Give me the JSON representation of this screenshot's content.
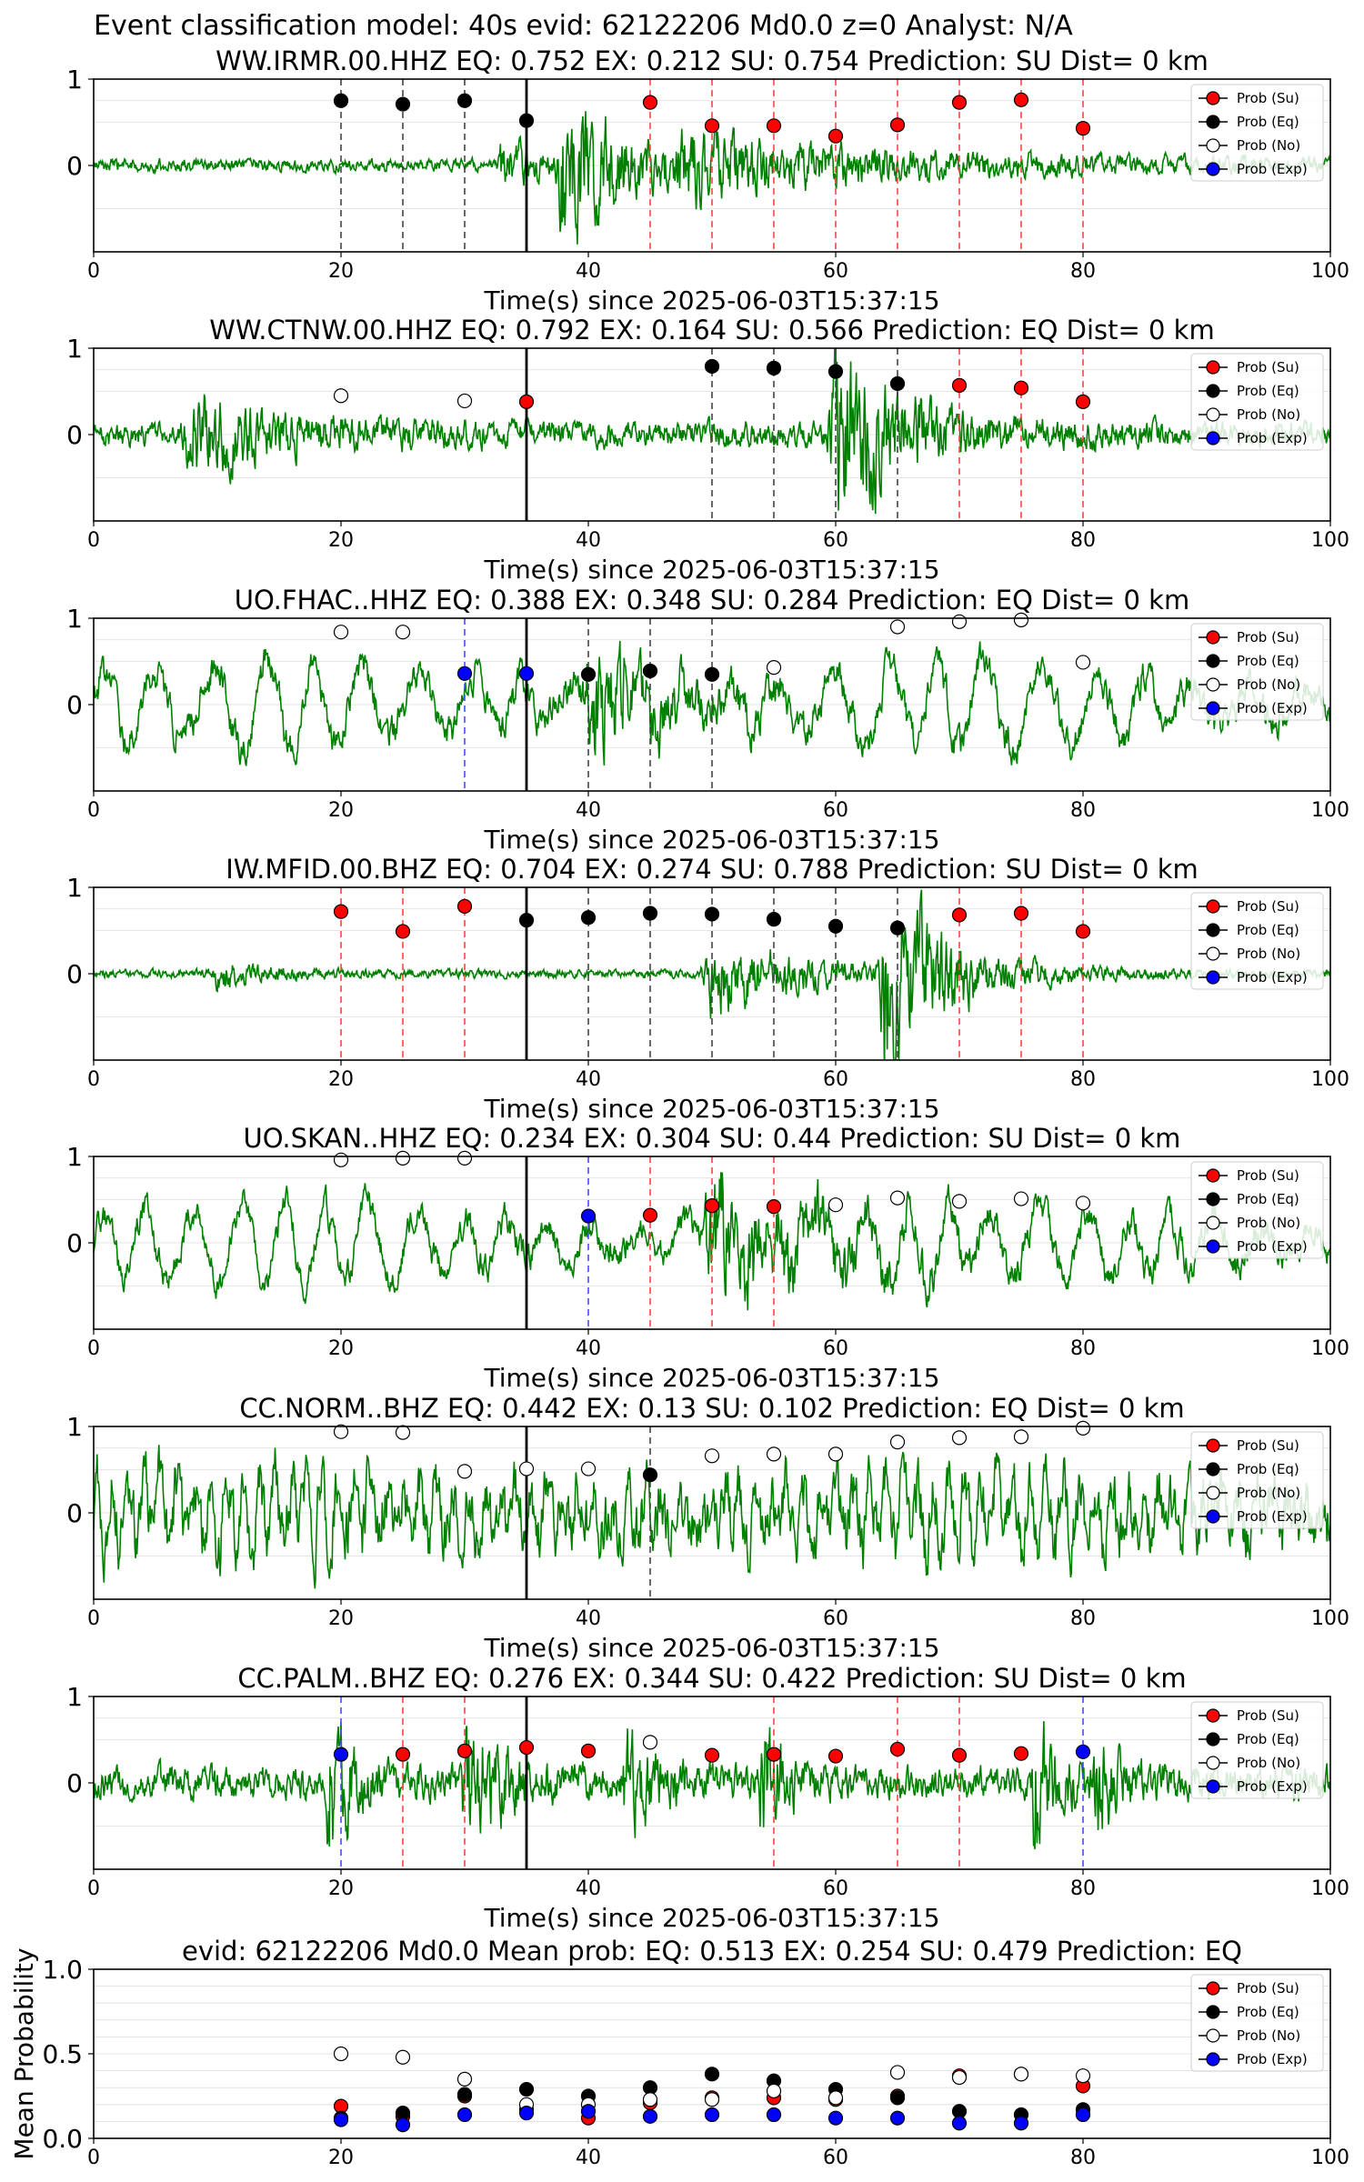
{
  "figure": {
    "suptitle": "Event classification model: 40s evid: 62122206 Md0.0 z=0 Analyst: N/A",
    "colors": {
      "su": "#ff0000",
      "eq": "#000000",
      "no": "#ffffff",
      "exp": "#0000ff",
      "waveform": "#008000",
      "su_line": "#ff4444",
      "eq_line": "#444444",
      "exp_line": "#4a4aff",
      "origin_line": "#000000"
    },
    "legend": [
      "Prob (Su)",
      "Prob (Eq)",
      "Prob (No)",
      "Prob (Exp)"
    ]
  },
  "chart_data": [
    {
      "type": "scatter",
      "title": "WW.IRMR.00.HHZ   EQ: 0.752  EX: 0.212  SU: 0.754   Prediction: SU    Dist= 0 km",
      "xlabel": "Time(s) since 2025-06-03T15:37:15",
      "ylabel": "",
      "xlim": [
        0,
        100
      ],
      "ylim": [
        -1,
        1
      ],
      "xticks": [
        "0",
        "20",
        "40",
        "60",
        "80",
        "100"
      ],
      "yticks": [
        "0",
        "1"
      ],
      "origin_time": 35,
      "waveform": {
        "noise": 0.06,
        "bursts": [
          [
            33,
            4,
            0.25
          ],
          [
            38,
            8,
            0.75
          ],
          [
            48,
            30,
            0.25
          ]
        ],
        "osc_amp": 0,
        "osc_period": 0
      },
      "series": [
        {
          "name": "Prob (Su)",
          "x": [
            45,
            50,
            55,
            60,
            65,
            70,
            75,
            80
          ],
          "y": [
            0.73,
            0.46,
            0.46,
            0.34,
            0.47,
            0.73,
            0.76,
            0.43
          ]
        },
        {
          "name": "Prob (Eq)",
          "x": [
            20,
            25,
            30,
            35
          ],
          "y": [
            0.75,
            0.71,
            0.75,
            0.52
          ]
        },
        {
          "name": "Prob (No)",
          "x": [],
          "y": []
        },
        {
          "name": "Prob (Exp)",
          "x": [],
          "y": []
        }
      ],
      "vlines": [
        {
          "x": 20,
          "cls": "eq"
        },
        {
          "x": 25,
          "cls": "eq"
        },
        {
          "x": 30,
          "cls": "eq"
        },
        {
          "x": 45,
          "cls": "su"
        },
        {
          "x": 50,
          "cls": "su"
        },
        {
          "x": 55,
          "cls": "su"
        },
        {
          "x": 60,
          "cls": "su"
        },
        {
          "x": 65,
          "cls": "su"
        },
        {
          "x": 70,
          "cls": "su"
        },
        {
          "x": 75,
          "cls": "su"
        },
        {
          "x": 80,
          "cls": "su"
        }
      ],
      "legend_position": "upper right"
    },
    {
      "type": "scatter",
      "title": "WW.CTNW.00.HHZ   EQ: 0.792  EX: 0.164  SU: 0.566   Prediction: EQ    Dist= 0 km",
      "xlabel": "Time(s) since 2025-06-03T15:37:15",
      "ylabel": "",
      "xlim": [
        0,
        100
      ],
      "ylim": [
        -1,
        1
      ],
      "xticks": [
        "0",
        "20",
        "40",
        "60",
        "80",
        "100"
      ],
      "yticks": [
        "0",
        "1"
      ],
      "origin_time": 35,
      "waveform": {
        "noise": 0.12,
        "bursts": [
          [
            8,
            12,
            0.3
          ],
          [
            60,
            8,
            0.85
          ]
        ],
        "osc_amp": 0,
        "osc_period": 0
      },
      "series": [
        {
          "name": "Prob (Su)",
          "x": [
            35,
            70,
            75,
            80
          ],
          "y": [
            0.38,
            0.57,
            0.54,
            0.38
          ]
        },
        {
          "name": "Prob (Eq)",
          "x": [
            50,
            55,
            60,
            65
          ],
          "y": [
            0.79,
            0.77,
            0.73,
            0.59
          ]
        },
        {
          "name": "Prob (No)",
          "x": [
            20,
            30
          ],
          "y": [
            0.45,
            0.39
          ]
        },
        {
          "name": "Prob (Exp)",
          "x": [],
          "y": []
        }
      ],
      "vlines": [
        {
          "x": 50,
          "cls": "eq"
        },
        {
          "x": 55,
          "cls": "eq"
        },
        {
          "x": 60,
          "cls": "eq"
        },
        {
          "x": 65,
          "cls": "eq"
        },
        {
          "x": 70,
          "cls": "su"
        },
        {
          "x": 75,
          "cls": "su"
        },
        {
          "x": 80,
          "cls": "su"
        }
      ],
      "legend_position": "upper right"
    },
    {
      "type": "scatter",
      "title": "UO.FHAC..HHZ   EQ: 0.388  EX: 0.348  SU: 0.284   Prediction: EQ    Dist= 0 km",
      "xlabel": "Time(s) since 2025-06-03T15:37:15",
      "ylabel": "",
      "xlim": [
        0,
        100
      ],
      "ylim": [
        -1,
        1
      ],
      "xticks": [
        "0",
        "20",
        "40",
        "60",
        "80",
        "100"
      ],
      "yticks": [
        "0",
        "1"
      ],
      "origin_time": 35,
      "waveform": {
        "noise": 0.1,
        "bursts": [
          [
            40,
            8,
            0.45
          ]
        ],
        "osc_amp": 0.45,
        "osc_period": 4.2
      },
      "series": [
        {
          "name": "Prob (Su)",
          "x": [],
          "y": []
        },
        {
          "name": "Prob (Eq)",
          "x": [
            40,
            45,
            50
          ],
          "y": [
            0.35,
            0.39,
            0.35
          ]
        },
        {
          "name": "Prob (No)",
          "x": [
            20,
            25,
            55,
            65,
            70,
            75,
            80
          ],
          "y": [
            0.84,
            0.84,
            0.43,
            0.9,
            0.96,
            0.98,
            0.49
          ]
        },
        {
          "name": "Prob (Exp)",
          "x": [
            30,
            35
          ],
          "y": [
            0.36,
            0.36
          ]
        }
      ],
      "vlines": [
        {
          "x": 30,
          "cls": "exp"
        },
        {
          "x": 40,
          "cls": "eq"
        },
        {
          "x": 45,
          "cls": "eq"
        },
        {
          "x": 50,
          "cls": "eq"
        }
      ],
      "legend_position": "upper right"
    },
    {
      "type": "scatter",
      "title": "IW.MFID.00.BHZ   EQ: 0.704  EX: 0.274  SU: 0.788   Prediction: SU    Dist= 0 km",
      "xlabel": "Time(s) since 2025-06-03T15:37:15",
      "ylabel": "",
      "xlim": [
        0,
        100
      ],
      "ylim": [
        -1,
        1
      ],
      "xticks": [
        "0",
        "20",
        "40",
        "60",
        "80",
        "100"
      ],
      "yticks": [
        "0",
        "1"
      ],
      "origin_time": 35,
      "waveform": {
        "noise": 0.04,
        "bursts": [
          [
            10,
            5,
            0.15
          ],
          [
            50,
            12,
            0.35
          ],
          [
            64,
            8,
            0.95
          ]
        ],
        "osc_amp": 0,
        "osc_period": 0
      },
      "series": [
        {
          "name": "Prob (Su)",
          "x": [
            20,
            25,
            30,
            70,
            75,
            80
          ],
          "y": [
            0.72,
            0.49,
            0.78,
            0.68,
            0.7,
            0.49
          ]
        },
        {
          "name": "Prob (Eq)",
          "x": [
            35,
            40,
            45,
            50,
            55,
            60,
            65
          ],
          "y": [
            0.62,
            0.65,
            0.7,
            0.69,
            0.63,
            0.55,
            0.53
          ]
        },
        {
          "name": "Prob (No)",
          "x": [],
          "y": []
        },
        {
          "name": "Prob (Exp)",
          "x": [],
          "y": []
        }
      ],
      "vlines": [
        {
          "x": 20,
          "cls": "su"
        },
        {
          "x": 25,
          "cls": "su"
        },
        {
          "x": 30,
          "cls": "su"
        },
        {
          "x": 40,
          "cls": "eq"
        },
        {
          "x": 45,
          "cls": "eq"
        },
        {
          "x": 50,
          "cls": "eq"
        },
        {
          "x": 55,
          "cls": "eq"
        },
        {
          "x": 60,
          "cls": "eq"
        },
        {
          "x": 65,
          "cls": "eq"
        },
        {
          "x": 70,
          "cls": "su"
        },
        {
          "x": 75,
          "cls": "su"
        },
        {
          "x": 80,
          "cls": "su"
        }
      ],
      "legend_position": "upper right"
    },
    {
      "type": "scatter",
      "title": "UO.SKAN..HHZ   EQ: 0.234  EX: 0.304  SU: 0.44   Prediction: SU    Dist= 0 km",
      "xlabel": "Time(s) since 2025-06-03T15:37:15",
      "ylabel": "",
      "xlim": [
        0,
        100
      ],
      "ylim": [
        -1,
        1
      ],
      "xticks": [
        "0",
        "20",
        "40",
        "60",
        "80",
        "100"
      ],
      "yticks": [
        "0",
        "1"
      ],
      "origin_time": 35,
      "waveform": {
        "noise": 0.08,
        "bursts": [
          [
            50,
            12,
            0.55
          ]
        ],
        "osc_amp": 0.4,
        "osc_period": 3.6
      },
      "series": [
        {
          "name": "Prob (Su)",
          "x": [
            45,
            50,
            55
          ],
          "y": [
            0.32,
            0.43,
            0.42
          ]
        },
        {
          "name": "Prob (Eq)",
          "x": [],
          "y": []
        },
        {
          "name": "Prob (No)",
          "x": [
            20,
            25,
            30,
            60,
            65,
            70,
            75,
            80
          ],
          "y": [
            0.96,
            0.98,
            0.98,
            0.44,
            0.52,
            0.48,
            0.51,
            0.46
          ]
        },
        {
          "name": "Prob (Exp)",
          "x": [
            40
          ],
          "y": [
            0.31
          ]
        }
      ],
      "vlines": [
        {
          "x": 40,
          "cls": "exp"
        },
        {
          "x": 45,
          "cls": "su"
        },
        {
          "x": 50,
          "cls": "su"
        },
        {
          "x": 55,
          "cls": "su"
        }
      ],
      "legend_position": "upper right"
    },
    {
      "type": "scatter",
      "title": "CC.NORM..BHZ   EQ: 0.442  EX: 0.13  SU: 0.102   Prediction: EQ    Dist= 0 km",
      "xlabel": "Time(s) since 2025-06-03T15:37:15",
      "ylabel": "",
      "xlim": [
        0,
        100
      ],
      "ylim": [
        -1,
        1
      ],
      "xticks": [
        "0",
        "20",
        "40",
        "60",
        "80",
        "100"
      ],
      "yticks": [
        "0",
        "1"
      ],
      "origin_time": 35,
      "waveform": {
        "noise": 0.25,
        "bursts": [],
        "osc_amp": 0.35,
        "osc_period": 1.3
      },
      "series": [
        {
          "name": "Prob (Su)",
          "x": [],
          "y": []
        },
        {
          "name": "Prob (Eq)",
          "x": [
            45
          ],
          "y": [
            0.44
          ]
        },
        {
          "name": "Prob (No)",
          "x": [
            20,
            25,
            30,
            35,
            40,
            50,
            55,
            60,
            65,
            70,
            75,
            80
          ],
          "y": [
            0.94,
            0.93,
            0.48,
            0.51,
            0.51,
            0.66,
            0.68,
            0.68,
            0.82,
            0.87,
            0.88,
            0.98
          ]
        },
        {
          "name": "Prob (Exp)",
          "x": [],
          "y": []
        }
      ],
      "vlines": [
        {
          "x": 45,
          "cls": "eq"
        }
      ],
      "legend_position": "upper right"
    },
    {
      "type": "scatter",
      "title": "CC.PALM..BHZ   EQ: 0.276  EX: 0.344  SU: 0.422   Prediction: SU    Dist= 0 km",
      "xlabel": "Time(s) since 2025-06-03T15:37:15",
      "ylabel": "",
      "xlim": [
        0,
        100
      ],
      "ylim": [
        -1,
        1
      ],
      "xticks": [
        "0",
        "20",
        "40",
        "60",
        "80",
        "100"
      ],
      "yticks": [
        "0",
        "1"
      ],
      "origin_time": 35,
      "waveform": {
        "noise": 0.15,
        "bursts": [
          [
            19,
            3,
            0.7
          ],
          [
            30,
            4,
            0.75
          ],
          [
            43,
            4,
            0.45
          ],
          [
            54,
            3,
            0.55
          ],
          [
            76,
            3,
            0.6
          ],
          [
            81,
            3,
            0.45
          ]
        ],
        "osc_amp": 0,
        "osc_period": 0
      },
      "series": [
        {
          "name": "Prob (Su)",
          "x": [
            25,
            30,
            35,
            40,
            50,
            55,
            60,
            65,
            70,
            75
          ],
          "y": [
            0.33,
            0.37,
            0.41,
            0.37,
            0.32,
            0.33,
            0.31,
            0.39,
            0.32,
            0.34
          ]
        },
        {
          "name": "Prob (Eq)",
          "x": [],
          "y": []
        },
        {
          "name": "Prob (No)",
          "x": [
            45
          ],
          "y": [
            0.47
          ]
        },
        {
          "name": "Prob (Exp)",
          "x": [
            20,
            80
          ],
          "y": [
            0.33,
            0.36
          ]
        }
      ],
      "vlines": [
        {
          "x": 20,
          "cls": "exp"
        },
        {
          "x": 25,
          "cls": "su"
        },
        {
          "x": 30,
          "cls": "su"
        },
        {
          "x": 55,
          "cls": "su"
        },
        {
          "x": 65,
          "cls": "su"
        },
        {
          "x": 70,
          "cls": "su"
        },
        {
          "x": 80,
          "cls": "exp"
        }
      ],
      "legend_position": "upper right"
    },
    {
      "type": "scatter",
      "title": "evid: 62122206  Md0.0   Mean prob:   EQ: 0.513  EX: 0.254  SU: 0.479   Prediction: EQ",
      "xlabel": "",
      "ylabel": "Mean Probability",
      "xlim": [
        0,
        100
      ],
      "ylim": [
        0,
        1
      ],
      "xticks": [
        "0",
        "20",
        "40",
        "60",
        "80",
        "100"
      ],
      "yticks": [
        "0.0",
        "0.5",
        "1.0"
      ],
      "grid": true,
      "series": [
        {
          "name": "Prob (Su)",
          "x": [
            20,
            25,
            30,
            35,
            40,
            45,
            50,
            55,
            60,
            65,
            70,
            75,
            80
          ],
          "y": [
            0.19,
            0.13,
            0.25,
            0.17,
            0.12,
            0.21,
            0.24,
            0.24,
            0.23,
            0.25,
            0.37,
            0.38,
            0.31
          ]
        },
        {
          "name": "Prob (Eq)",
          "x": [
            20,
            25,
            30,
            35,
            40,
            45,
            50,
            55,
            60,
            65,
            70,
            75,
            80
          ],
          "y": [
            0.12,
            0.15,
            0.26,
            0.29,
            0.25,
            0.3,
            0.38,
            0.34,
            0.29,
            0.24,
            0.16,
            0.14,
            0.17
          ]
        },
        {
          "name": "Prob (No)",
          "x": [
            20,
            25,
            30,
            35,
            40,
            45,
            50,
            55,
            60,
            65,
            70,
            75,
            80
          ],
          "y": [
            0.5,
            0.48,
            0.35,
            0.2,
            0.2,
            0.23,
            0.23,
            0.28,
            0.24,
            0.39,
            0.36,
            0.38,
            0.37
          ]
        },
        {
          "name": "Prob (Exp)",
          "x": [
            20,
            25,
            30,
            35,
            40,
            45,
            50,
            55,
            60,
            65,
            70,
            75,
            80
          ],
          "y": [
            0.11,
            0.08,
            0.14,
            0.15,
            0.16,
            0.13,
            0.14,
            0.14,
            0.12,
            0.12,
            0.09,
            0.09,
            0.14
          ]
        }
      ],
      "vlines": [],
      "legend_position": "upper right"
    }
  ]
}
